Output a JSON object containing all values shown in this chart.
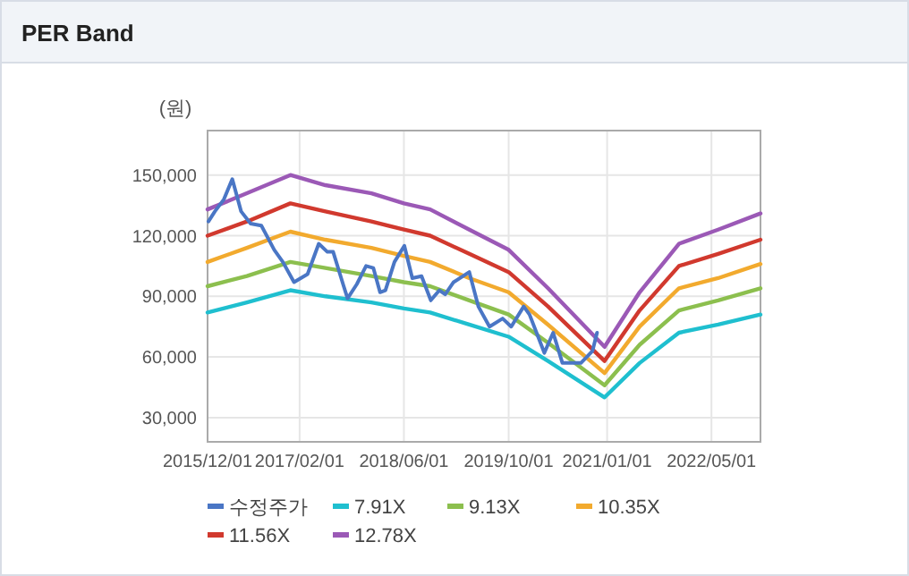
{
  "chart_data": {
    "type": "line",
    "title": "PER Band",
    "ylabel": "(원)",
    "xlim": [
      "2015-12-01",
      "2022-12-15"
    ],
    "xticks": [
      {
        "value": "2015-12-01",
        "label": "2015/12/01"
      },
      {
        "value": "2017-02-01",
        "label": "2017/02/01"
      },
      {
        "value": "2018-06-01",
        "label": "2018/06/01"
      },
      {
        "value": "2019-10-01",
        "label": "2019/10/01"
      },
      {
        "value": "2021-01-01",
        "label": "2021/01/01"
      },
      {
        "value": "2022-05-01",
        "label": "2022/05/01"
      }
    ],
    "ylim": [
      18000,
      172000
    ],
    "yticks": [
      {
        "value": 30000,
        "label": "30,000"
      },
      {
        "value": 60000,
        "label": "60,000"
      },
      {
        "value": 90000,
        "label": "90,000"
      },
      {
        "value": 120000,
        "label": "120,000"
      },
      {
        "value": 150000,
        "label": "150,000"
      }
    ],
    "grid": true,
    "legend": "bottom",
    "series": [
      {
        "name": "수정주가",
        "color": "#4a76c5",
        "x": [
          "2015-12-05",
          "2016-01-04",
          "2016-02-15",
          "2016-03-25",
          "2016-05-05",
          "2016-06-18",
          "2016-08-07",
          "2016-10-06",
          "2016-11-15",
          "2017-01-06",
          "2017-03-10",
          "2017-05-01",
          "2017-06-10",
          "2017-07-07",
          "2017-08-25",
          "2017-09-12",
          "2017-10-25",
          "2017-12-07",
          "2018-01-10",
          "2018-02-10",
          "2018-03-07",
          "2018-04-18",
          "2018-06-03",
          "2018-07-10",
          "2018-08-22",
          "2018-10-04",
          "2018-11-13",
          "2018-12-10",
          "2019-01-18",
          "2019-04-01",
          "2019-05-13",
          "2019-07-04",
          "2019-09-03",
          "2019-10-13",
          "2019-12-10",
          "2020-01-06",
          "2020-03-15",
          "2020-04-25",
          "2020-06-07",
          "2020-09-01",
          "2020-10-25",
          "2020-11-15"
        ],
        "values": [
          127000,
          132000,
          138000,
          148000,
          132000,
          126000,
          125000,
          113000,
          107000,
          97000,
          101000,
          116000,
          112000,
          112000,
          95000,
          89000,
          96000,
          105000,
          104000,
          92000,
          93000,
          107000,
          115000,
          99000,
          100000,
          88000,
          93000,
          91000,
          97000,
          102000,
          85000,
          75000,
          79000,
          75000,
          85000,
          81000,
          62000,
          72000,
          57000,
          57000,
          63000,
          72000
        ]
      },
      {
        "name": "7.91X",
        "color": "#1fbfcf",
        "values": [
          82000,
          87000,
          93000,
          90000,
          87000,
          84000,
          82000,
          76000,
          70000,
          58000,
          40000,
          57000,
          72000,
          76000,
          81000
        ]
      },
      {
        "name": "9.13X",
        "color": "#8cbf4e",
        "values": [
          95000,
          100000,
          107000,
          104000,
          100000,
          97000,
          95000,
          88000,
          81000,
          67000,
          46000,
          66000,
          83000,
          88000,
          94000
        ]
      },
      {
        "name": "10.35X",
        "color": "#f2aa2e",
        "values": [
          107000,
          114000,
          122000,
          118000,
          114000,
          110000,
          107000,
          99000,
          92000,
          76000,
          52000,
          75000,
          94000,
          99000,
          106000
        ]
      },
      {
        "name": "11.56X",
        "color": "#d1392e",
        "values": [
          120000,
          127000,
          136000,
          132000,
          127000,
          123000,
          120000,
          111000,
          102000,
          85000,
          58000,
          83000,
          105000,
          111000,
          118000
        ]
      },
      {
        "name": "12.78X",
        "color": "#9b59b6",
        "values": [
          133000,
          141000,
          150000,
          145000,
          141000,
          136000,
          133000,
          123000,
          113000,
          94000,
          65000,
          92000,
          116000,
          123000,
          131000
        ]
      }
    ],
    "x": [
      "2015-12-01",
      "2016-06-01",
      "2016-12-20",
      "2017-06-01",
      "2018-01-01",
      "2018-06-01",
      "2018-10-01",
      "2019-04-01",
      "2019-10-01",
      "2020-04-01",
      "2020-12-20",
      "2021-06-01",
      "2021-12-01",
      "2022-06-01",
      "2022-12-15"
    ]
  }
}
